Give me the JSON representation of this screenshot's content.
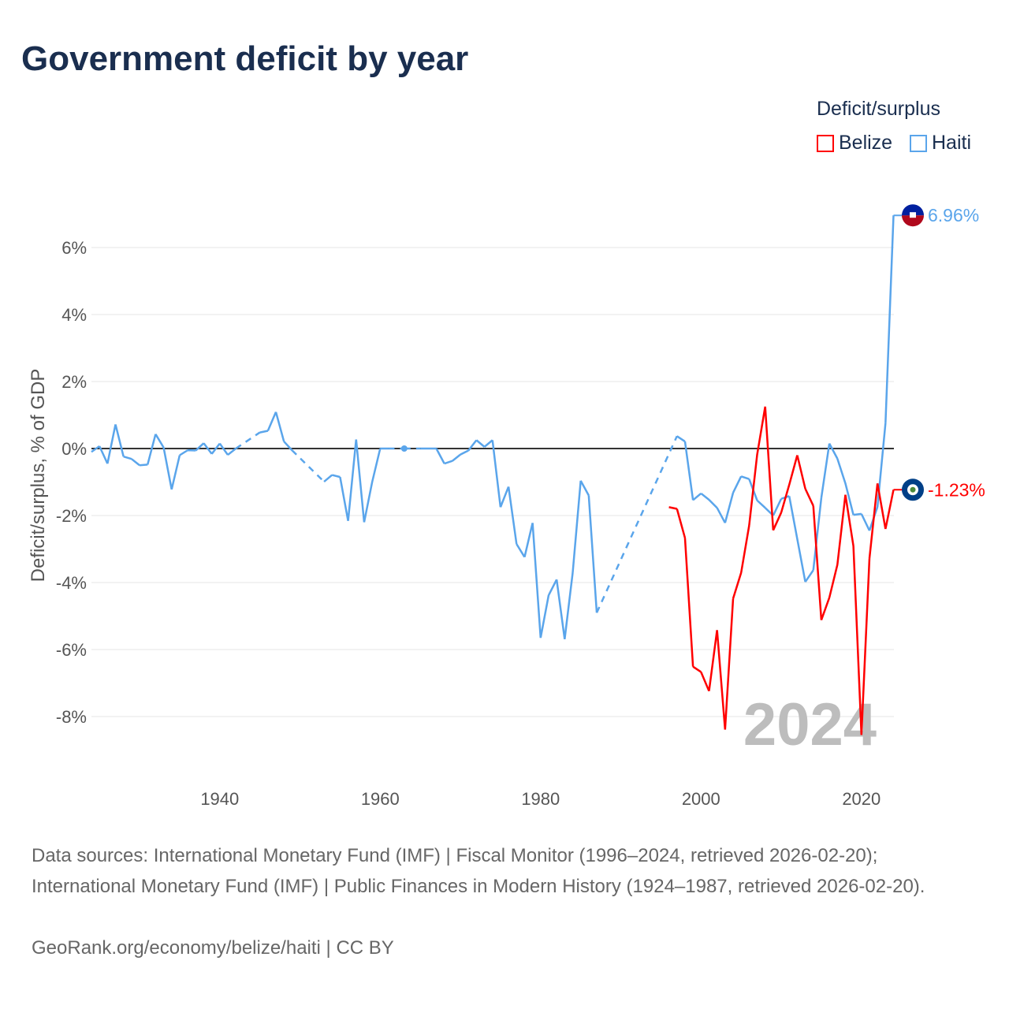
{
  "title": "Government deficit by year",
  "legend": {
    "title": "Deficit/surplus",
    "items": [
      {
        "name": "Belize",
        "color": "#ff0000"
      },
      {
        "name": "Haiti",
        "color": "#5aa5eb"
      }
    ]
  },
  "footer": {
    "sources": "Data sources: International Monetary Fund (IMF) | Fiscal Monitor (1996–2024, retrieved 2026-02-20); International Monetary Fund (IMF) | Public Finances in Modern History (1924–1987, retrieved 2026-02-20).",
    "credit": "GeoRank.org/economy/belize/haiti | CC BY"
  },
  "chart_data": {
    "type": "line",
    "title": "Government deficit by year",
    "ylabel": "Deficit/surplus, % of GDP",
    "xlabel": "",
    "xlim": [
      1924,
      2024
    ],
    "ylim": [
      -9.5,
      7
    ],
    "yticks": [
      6,
      4,
      2,
      0,
      -2,
      -4,
      -6,
      -8
    ],
    "ytick_labels": [
      "6%",
      "4%",
      "2%",
      "0%",
      "-2%",
      "-4%",
      "-6%",
      "-8%"
    ],
    "xticks": [
      1940,
      1960,
      1980,
      2000,
      2020
    ],
    "xtick_labels": [
      "1940",
      "1960",
      "1980",
      "2000",
      "2020"
    ],
    "year_watermark": "2024",
    "legend_position": "top-right",
    "series": [
      {
        "name": "Haiti",
        "color": "#5aa5eb",
        "end_label": "6.96%",
        "points": [
          [
            1924,
            -0.1
          ],
          [
            1925,
            0.07
          ],
          [
            1926,
            -0.45
          ],
          [
            1927,
            0.72
          ],
          [
            1928,
            -0.24
          ],
          [
            1929,
            -0.31
          ],
          [
            1930,
            -0.5
          ],
          [
            1931,
            -0.48
          ],
          [
            1932,
            0.43
          ],
          [
            1933,
            0.03
          ],
          [
            1934,
            -1.22
          ],
          [
            1935,
            -0.2
          ],
          [
            1936,
            -0.05
          ],
          [
            1937,
            -0.06
          ],
          [
            1938,
            0.16
          ],
          [
            1939,
            -0.16
          ],
          [
            1940,
            0.15
          ],
          [
            1941,
            -0.19
          ],
          [
            1942,
            0.0
          ],
          [
            1945,
            0.48
          ],
          [
            1946,
            0.53
          ],
          [
            1947,
            1.09
          ],
          [
            1948,
            0.21
          ],
          [
            1949,
            -0.05
          ],
          [
            1953,
            -0.99
          ],
          [
            1954,
            -0.79
          ],
          [
            1955,
            -0.85
          ],
          [
            1956,
            -2.16
          ],
          [
            1957,
            0.27
          ],
          [
            1958,
            -2.2
          ],
          [
            1959,
            -1.0
          ],
          [
            1960,
            0.0
          ],
          [
            1961,
            0.0
          ],
          [
            1963,
            0.0
          ],
          [
            1965,
            0.0
          ],
          [
            1966,
            0.0
          ],
          [
            1967,
            0.0
          ],
          [
            1968,
            -0.45
          ],
          [
            1969,
            -0.37
          ],
          [
            1970,
            -0.18
          ],
          [
            1971,
            -0.06
          ],
          [
            1972,
            0.25
          ],
          [
            1973,
            0.05
          ],
          [
            1974,
            0.25
          ],
          [
            1975,
            -1.75
          ],
          [
            1976,
            -1.14
          ],
          [
            1977,
            -2.85
          ],
          [
            1978,
            -3.24
          ],
          [
            1979,
            -2.22
          ],
          [
            1980,
            -5.65
          ],
          [
            1981,
            -4.38
          ],
          [
            1982,
            -3.91
          ],
          [
            1983,
            -5.69
          ],
          [
            1984,
            -3.71
          ],
          [
            1985,
            -0.96
          ],
          [
            1986,
            -1.4
          ],
          [
            1987,
            -4.9
          ],
          [
            1997,
            0.37
          ],
          [
            1998,
            0.21
          ],
          [
            1999,
            -1.54
          ],
          [
            2000,
            -1.34
          ],
          [
            2001,
            -1.53
          ],
          [
            2002,
            -1.77
          ],
          [
            2003,
            -2.22
          ],
          [
            2004,
            -1.32
          ],
          [
            2005,
            -0.83
          ],
          [
            2006,
            -0.91
          ],
          [
            2007,
            -1.55
          ],
          [
            2008,
            -1.77
          ],
          [
            2009,
            -2.0
          ],
          [
            2010,
            -1.5
          ],
          [
            2011,
            -1.42
          ],
          [
            2012,
            -2.7
          ],
          [
            2013,
            -3.98
          ],
          [
            2014,
            -3.63
          ],
          [
            2015,
            -1.47
          ],
          [
            2016,
            0.15
          ],
          [
            2017,
            -0.3
          ],
          [
            2018,
            -1.04
          ],
          [
            2019,
            -1.98
          ],
          [
            2020,
            -1.95
          ],
          [
            2021,
            -2.45
          ],
          [
            2022,
            -1.74
          ],
          [
            2023,
            0.76
          ],
          [
            2024,
            6.96
          ]
        ]
      },
      {
        "name": "Belize",
        "color": "#ff0000",
        "end_label": "-1.23%",
        "points": [
          [
            1996,
            -1.75
          ],
          [
            1997,
            -1.8
          ],
          [
            1998,
            -2.67
          ],
          [
            1999,
            -6.51
          ],
          [
            2000,
            -6.67
          ],
          [
            2001,
            -7.24
          ],
          [
            2002,
            -5.42
          ],
          [
            2003,
            -8.39
          ],
          [
            2004,
            -4.48
          ],
          [
            2005,
            -3.71
          ],
          [
            2006,
            -2.3
          ],
          [
            2007,
            -0.18
          ],
          [
            2008,
            1.25
          ],
          [
            2009,
            -2.44
          ],
          [
            2010,
            -1.91
          ],
          [
            2011,
            -1.08
          ],
          [
            2012,
            -0.2
          ],
          [
            2013,
            -1.2
          ],
          [
            2014,
            -1.71
          ],
          [
            2015,
            -5.12
          ],
          [
            2016,
            -4.45
          ],
          [
            2017,
            -3.47
          ],
          [
            2018,
            -1.38
          ],
          [
            2019,
            -2.91
          ],
          [
            2020,
            -8.55
          ],
          [
            2021,
            -3.28
          ],
          [
            2022,
            -1.04
          ],
          [
            2023,
            -2.4
          ],
          [
            2024,
            -1.23
          ]
        ]
      }
    ]
  }
}
